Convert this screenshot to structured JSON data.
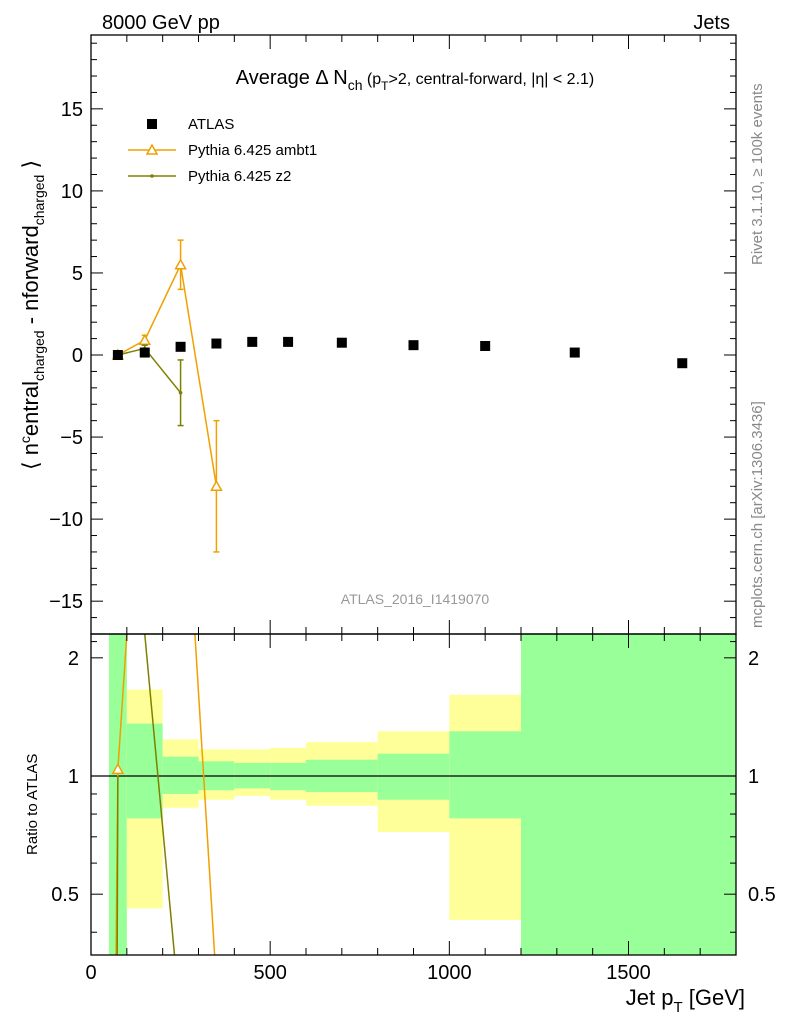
{
  "header": {
    "left": "8000 GeV pp",
    "right": "Jets"
  },
  "side_labels": {
    "rivet": "Rivet 3.1.10, ≥ 100k events",
    "mcplots": "mcplots.cern.ch [arXiv:1306.3436]"
  },
  "analysis_id": "ATLAS_2016_I1419070",
  "chart_data": [
    {
      "type": "scatter",
      "panel": "main",
      "title": "Average Δ N_ch (p_T>2, central-forward, |η| < 2.1)",
      "ylabel": "⟨ n^central_charged - n^forward_charged ⟩",
      "xlim": [
        0,
        1800
      ],
      "ylim": [
        -17,
        19.5
      ],
      "yticks": [
        -15,
        -10,
        -5,
        0,
        5,
        10,
        15
      ],
      "xticks": [
        0,
        500,
        1000,
        1500
      ],
      "legend_position": "top-left",
      "series": [
        {
          "name": "ATLAS",
          "color": "#000000",
          "marker": "square",
          "x": [
            75,
            150,
            250,
            350,
            450,
            550,
            700,
            900,
            1100,
            1350,
            1650
          ],
          "y": [
            0.0,
            0.15,
            0.5,
            0.7,
            0.8,
            0.8,
            0.75,
            0.6,
            0.55,
            0.15,
            -0.5
          ]
        },
        {
          "name": "Pythia 6.425 ambt1",
          "color": "#f0a000",
          "marker": "open-triangle",
          "x": [
            75,
            150,
            250,
            350
          ],
          "y": [
            0.0,
            0.9,
            5.5,
            -8.0
          ],
          "yerr": [
            0.1,
            0.3,
            1.5,
            4.0
          ]
        },
        {
          "name": "Pythia 6.425 z2",
          "color": "#808000",
          "marker": "dot",
          "x": [
            75,
            150,
            250
          ],
          "y": [
            0.0,
            0.4,
            -2.3
          ],
          "yerr": [
            0.1,
            0.2,
            2.0
          ]
        }
      ]
    },
    {
      "type": "line",
      "panel": "ratio",
      "ylabel": "Ratio to ATLAS",
      "xlabel": "Jet p_T [GeV]",
      "xlim": [
        0,
        1800
      ],
      "ylim": [
        0.35,
        2.3
      ],
      "yticks": [
        0.5,
        1,
        2
      ],
      "band_colors": {
        "stat": "#99ff99",
        "total": "#ffff99"
      },
      "bands": [
        {
          "x0": 50,
          "x1": 100,
          "inner": [
            0.35,
            2.3
          ],
          "outer": [
            0.35,
            2.3
          ]
        },
        {
          "x0": 100,
          "x1": 200,
          "inner": [
            0.78,
            1.36
          ],
          "outer": [
            0.46,
            1.66
          ]
        },
        {
          "x0": 200,
          "x1": 300,
          "inner": [
            0.9,
            1.12
          ],
          "outer": [
            0.83,
            1.24
          ]
        },
        {
          "x0": 300,
          "x1": 400,
          "inner": [
            0.92,
            1.09
          ],
          "outer": [
            0.87,
            1.17
          ]
        },
        {
          "x0": 400,
          "x1": 500,
          "inner": [
            0.93,
            1.08
          ],
          "outer": [
            0.89,
            1.17
          ]
        },
        {
          "x0": 500,
          "x1": 600,
          "inner": [
            0.92,
            1.08
          ],
          "outer": [
            0.87,
            1.18
          ]
        },
        {
          "x0": 600,
          "x1": 800,
          "inner": [
            0.91,
            1.1
          ],
          "outer": [
            0.84,
            1.22
          ]
        },
        {
          "x0": 800,
          "x1": 1000,
          "inner": [
            0.87,
            1.14
          ],
          "outer": [
            0.72,
            1.3
          ]
        },
        {
          "x0": 1000,
          "x1": 1200,
          "inner": [
            0.78,
            1.3
          ],
          "outer": [
            0.43,
            1.61
          ]
        },
        {
          "x0": 1200,
          "x1": 1800,
          "inner": [
            0.35,
            2.3
          ],
          "outer": [
            0.35,
            2.3
          ]
        }
      ],
      "series": [
        {
          "name": "Pythia 6.425 ambt1",
          "color": "#f0a000",
          "lines": [
            {
              "x": [
                75,
                100
              ],
              "y": [
                1.04,
                2.3
              ]
            },
            {
              "x": [
                75,
                70
              ],
              "y": [
                1.04,
                0.35
              ]
            },
            {
              "x": [
                290,
                345
              ],
              "y": [
                2.3,
                0.35
              ]
            }
          ],
          "points": [
            {
              "x": 75,
              "y": 1.04
            }
          ]
        },
        {
          "name": "Pythia 6.425 z2",
          "color": "#808000",
          "lines": [
            {
              "x": [
                75,
                73
              ],
              "y": [
                1.0,
                0.35
              ]
            },
            {
              "x": [
                150,
                233
              ],
              "y": [
                2.3,
                0.35
              ]
            }
          ],
          "points": []
        }
      ]
    }
  ]
}
